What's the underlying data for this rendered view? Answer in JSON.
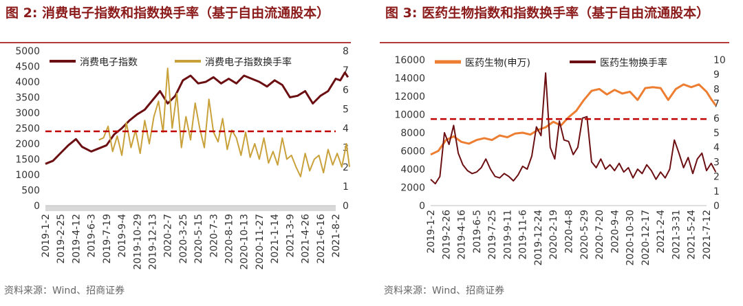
{
  "chart_data": [
    {
      "type": "line",
      "figure_label": "图 2:",
      "title": "消费电子指数和指数换手率（基于自由流通股本）",
      "source": "资料来源：Wind、招商证券",
      "legend_position": "top-left",
      "y_left": {
        "ylim": [
          0,
          5000
        ],
        "ticks": [
          "5000",
          "4500",
          "4000",
          "3500",
          "3000",
          "2500",
          "2000",
          "1500",
          "1000",
          "500",
          "0"
        ]
      },
      "y_right": {
        "ylim": [
          0,
          8
        ],
        "ticks": [
          "8",
          "7",
          "6",
          "5",
          "4",
          "3",
          "2",
          "1",
          "0"
        ]
      },
      "x_ticks": [
        "2019-1-2",
        "2019-2-25",
        "2019-4-12",
        "2019-6-3",
        "2019-7-19",
        "2019-9-4",
        "2019-10-29",
        "2019-12-13",
        "2020-2-7",
        "2020-3-25",
        "2020-5-15",
        "2020-7-3",
        "2020-8-19",
        "2020-10-13",
        "2020-11-27",
        "2021-1-14",
        "2021-3-9",
        "2021-4-26",
        "2021-6-16",
        "2021-8-2"
      ],
      "reference_line": {
        "axis": "left",
        "value": 2400,
        "color": "#c00000",
        "style": "dashed"
      },
      "series": [
        {
          "name": "消费电子指数",
          "axis": "left",
          "color": "#6b0f12",
          "x_index": [
            0,
            0.5,
            1,
            1.5,
            2,
            2.4,
            3,
            3.5,
            4,
            4.5,
            5,
            5.5,
            6,
            6.5,
            7,
            7.5,
            8,
            8.5,
            9,
            9.5,
            10,
            10.5,
            11,
            11.5,
            12,
            12.5,
            13,
            13.5,
            14,
            14.5,
            15,
            15.5,
            16,
            16.5,
            17,
            17.5,
            18,
            18.5,
            19,
            19.3,
            19.6,
            19.8
          ],
          "values": [
            1350,
            1450,
            1700,
            1950,
            2150,
            1900,
            1750,
            1850,
            1950,
            2300,
            2500,
            2750,
            2950,
            3100,
            3400,
            3700,
            3300,
            3550,
            4050,
            4200,
            3950,
            4000,
            4150,
            3950,
            4100,
            3950,
            4200,
            4100,
            4000,
            3850,
            4050,
            3900,
            3500,
            3550,
            3700,
            3300,
            3550,
            3700,
            4100,
            4050,
            4300,
            4150
          ]
        },
        {
          "name": "消费电子指数换手率",
          "axis": "right",
          "color": "#c9a13a",
          "x_index": [
            3.5,
            3.8,
            4.1,
            4.4,
            4.7,
            5,
            5.3,
            5.6,
            5.9,
            6.2,
            6.5,
            6.8,
            7.1,
            7.4,
            7.7,
            8,
            8.3,
            8.6,
            8.9,
            9.2,
            9.5,
            9.8,
            10.1,
            10.4,
            10.7,
            11,
            11.3,
            11.6,
            11.9,
            12.2,
            12.5,
            12.8,
            13.1,
            13.4,
            13.7,
            14,
            14.3,
            14.6,
            14.9,
            15.2,
            15.5,
            15.8,
            16.1,
            16.4,
            16.7,
            17,
            17.3,
            17.6,
            17.9,
            18.2,
            18.5,
            18.8,
            19.1,
            19.4,
            19.7,
            19.9
          ],
          "values": [
            3.4,
            3.5,
            4.1,
            2.8,
            3.6,
            2.6,
            4.3,
            3.0,
            3.9,
            2.7,
            4.4,
            3.2,
            4.6,
            5.4,
            3.8,
            7.1,
            4.0,
            5.8,
            3.0,
            4.6,
            3.4,
            5.3,
            4.0,
            3.0,
            5.5,
            3.8,
            3.3,
            4.5,
            2.9,
            3.9,
            3.5,
            2.6,
            3.8,
            2.5,
            3.2,
            2.4,
            3.5,
            2.2,
            2.8,
            2.1,
            3.5,
            2.4,
            2.6,
            2.0,
            1.5,
            2.7,
            1.8,
            2.4,
            2.6,
            1.7,
            2.9,
            2.1,
            2.7,
            2.0,
            3.2,
            2.0
          ]
        }
      ]
    },
    {
      "type": "line",
      "figure_label": "图 3:",
      "title": "医药生物指数和指数换手率（基于自由流通股本）",
      "source": "资料来源：Wind、招商证券",
      "legend_position": "top",
      "y_left": {
        "ylim": [
          0,
          16000
        ],
        "ticks": [
          "16000",
          "14000",
          "12000",
          "10000",
          "8000",
          "6000",
          "4000",
          "2000",
          "0"
        ]
      },
      "y_right": {
        "ylim": [
          0,
          10
        ],
        "ticks": [
          "10",
          "9",
          "8",
          "7",
          "6",
          "5",
          "4",
          "3",
          "2",
          "1",
          "0"
        ]
      },
      "x_ticks": [
        "2019-1-2",
        "2019-2-26",
        "2019-4-16",
        "2019-6-5",
        "2019-7-25",
        "2019-9-11",
        "2019-11-6",
        "2019-12-24",
        "2020-2-19",
        "2020-4-8",
        "2020-5-29",
        "2020-7-20",
        "2020-9-4",
        "2020-10-30",
        "2020-12-17",
        "2021-2-4",
        "2021-3-31",
        "2021-5-24",
        "2021-7-12"
      ],
      "reference_line": {
        "axis": "left",
        "value": 9500,
        "color": "#c00000",
        "style": "dashed"
      },
      "series": [
        {
          "name": "医药生物(申万)",
          "axis": "left",
          "color": "#ed7d31",
          "x_index": [
            0,
            0.5,
            1,
            1.5,
            2,
            2.5,
            3,
            3.5,
            4,
            4.5,
            5,
            5.5,
            6,
            6.5,
            7,
            7.5,
            8,
            8.5,
            9,
            9.5,
            10,
            10.5,
            11,
            11.5,
            12,
            12.5,
            13,
            13.5,
            14,
            14.5,
            15,
            15.5,
            16,
            16.5,
            17,
            17.5,
            18,
            18.3,
            18.6
          ],
          "values": [
            5600,
            6000,
            7200,
            7600,
            7000,
            6800,
            7200,
            7400,
            7200,
            7700,
            7500,
            7900,
            8000,
            7800,
            8300,
            8600,
            9200,
            8800,
            9700,
            10400,
            11600,
            12600,
            12800,
            12200,
            12700,
            12300,
            12500,
            11600,
            12900,
            13000,
            12900,
            11600,
            12800,
            13300,
            13000,
            13300,
            12500,
            11700,
            11000
          ]
        },
        {
          "name": "医药生物换手率",
          "axis": "right",
          "color": "#6b0f12",
          "x_index": [
            0,
            0.3,
            0.6,
            0.9,
            1.2,
            1.5,
            1.8,
            2.1,
            2.4,
            2.7,
            3,
            3.3,
            3.6,
            3.9,
            4.2,
            4.5,
            4.8,
            5.1,
            5.4,
            5.7,
            6,
            6.3,
            6.6,
            6.9,
            7.2,
            7.5,
            7.8,
            8.1,
            8.4,
            8.7,
            9,
            9.3,
            9.6,
            9.9,
            10.2,
            10.5,
            10.8,
            11.1,
            11.4,
            11.7,
            12,
            12.3,
            12.6,
            12.9,
            13.2,
            13.5,
            13.8,
            14.1,
            14.4,
            14.7,
            15,
            15.3,
            15.6,
            15.9,
            16.2,
            16.5,
            16.8,
            17.1,
            17.4,
            17.7,
            18,
            18.3,
            18.6
          ],
          "values": [
            1.8,
            1.5,
            2.0,
            5.0,
            4.2,
            5.5,
            3.6,
            2.8,
            2.4,
            2.2,
            2.3,
            2.6,
            3.2,
            2.5,
            2.0,
            1.9,
            2.2,
            2.0,
            1.7,
            2.1,
            2.7,
            2.5,
            3.4,
            5.4,
            4.8,
            9.1,
            4.0,
            3.2,
            5.8,
            4.5,
            4.4,
            3.5,
            4.0,
            6.0,
            6.1,
            3.0,
            2.6,
            3.2,
            2.5,
            2.8,
            2.4,
            2.9,
            2.3,
            2.6,
            1.9,
            2.5,
            2.2,
            2.8,
            2.4,
            1.8,
            2.3,
            1.9,
            2.5,
            4.5,
            3.6,
            2.6,
            3.3,
            2.2,
            3.2,
            3.6,
            2.4,
            2.9,
            2.3
          ]
        }
      ]
    }
  ]
}
